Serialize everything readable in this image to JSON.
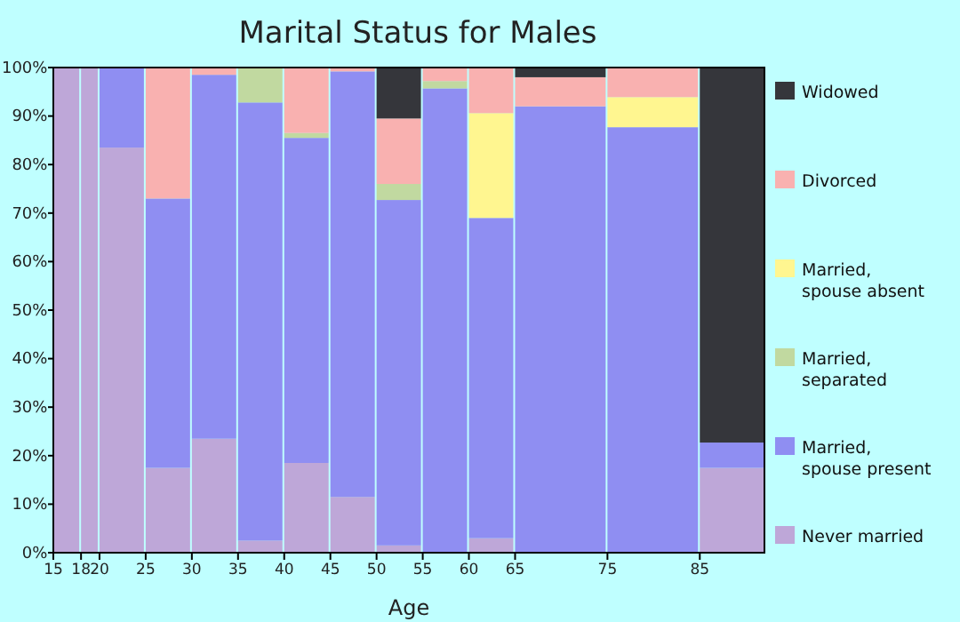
{
  "chart_data": {
    "type": "bar",
    "stacked": true,
    "title": "Marital Status for Males",
    "xlabel": "Age",
    "x": [
      16.5,
      19,
      22.5,
      27.5,
      32.5,
      37.5,
      42.5,
      47.5,
      52.5,
      57.5,
      62.5,
      70,
      80,
      88.5
    ],
    "xlim": [
      15,
      92
    ],
    "xticks": [
      15,
      18,
      20,
      25,
      30,
      35,
      40,
      45,
      50,
      55,
      60,
      65,
      75,
      85
    ],
    "ylim": [
      0,
      100
    ],
    "yticks": [
      {
        "value": 0,
        "label": "0%"
      },
      {
        "value": 10,
        "label": "10%"
      },
      {
        "value": 20,
        "label": "20%"
      },
      {
        "value": 30,
        "label": "30%"
      },
      {
        "value": 40,
        "label": "40%"
      },
      {
        "value": 50,
        "label": "50%"
      },
      {
        "value": 60,
        "label": "60%"
      },
      {
        "value": 70,
        "label": "70%"
      },
      {
        "value": 80,
        "label": "80%"
      },
      {
        "value": 90,
        "label": "90%"
      },
      {
        "value": 100,
        "label": "100%"
      }
    ],
    "legend": "right",
    "grid": false,
    "series": [
      {
        "name": "Never married",
        "color": "#bea7d8",
        "values": [
          100,
          100,
          83.5,
          17.5,
          23.5,
          2.5,
          18.5,
          11.5,
          1.5,
          null,
          3,
          null,
          null,
          17.5
        ]
      },
      {
        "name": "Married, spouse present",
        "color": "#8f8ef2",
        "values": [
          null,
          null,
          16.5,
          55.5,
          75,
          90.3,
          67,
          87.7,
          71.2,
          95.7,
          66,
          92,
          87.7,
          5.2
        ]
      },
      {
        "name": "Married, separated",
        "color": "#c1d9a0",
        "values": [
          null,
          null,
          null,
          null,
          null,
          7.2,
          1,
          null,
          3.3,
          1.5,
          null,
          null,
          null,
          null
        ]
      },
      {
        "name": "Married, spouse absent",
        "color": "#fff690",
        "values": [
          null,
          null,
          null,
          null,
          null,
          null,
          null,
          null,
          null,
          null,
          21.6,
          null,
          6.2,
          null
        ]
      },
      {
        "name": "Divorced",
        "color": "#f9b1b0",
        "values": [
          null,
          null,
          null,
          27,
          1.5,
          null,
          13.5,
          0.8,
          13.5,
          2.8,
          9.4,
          6,
          6.1,
          null
        ]
      },
      {
        "name": "Widowed",
        "color": "#35363b",
        "values": [
          null,
          null,
          null,
          null,
          null,
          null,
          null,
          null,
          10.5,
          null,
          null,
          2,
          null,
          77.3
        ]
      }
    ]
  }
}
